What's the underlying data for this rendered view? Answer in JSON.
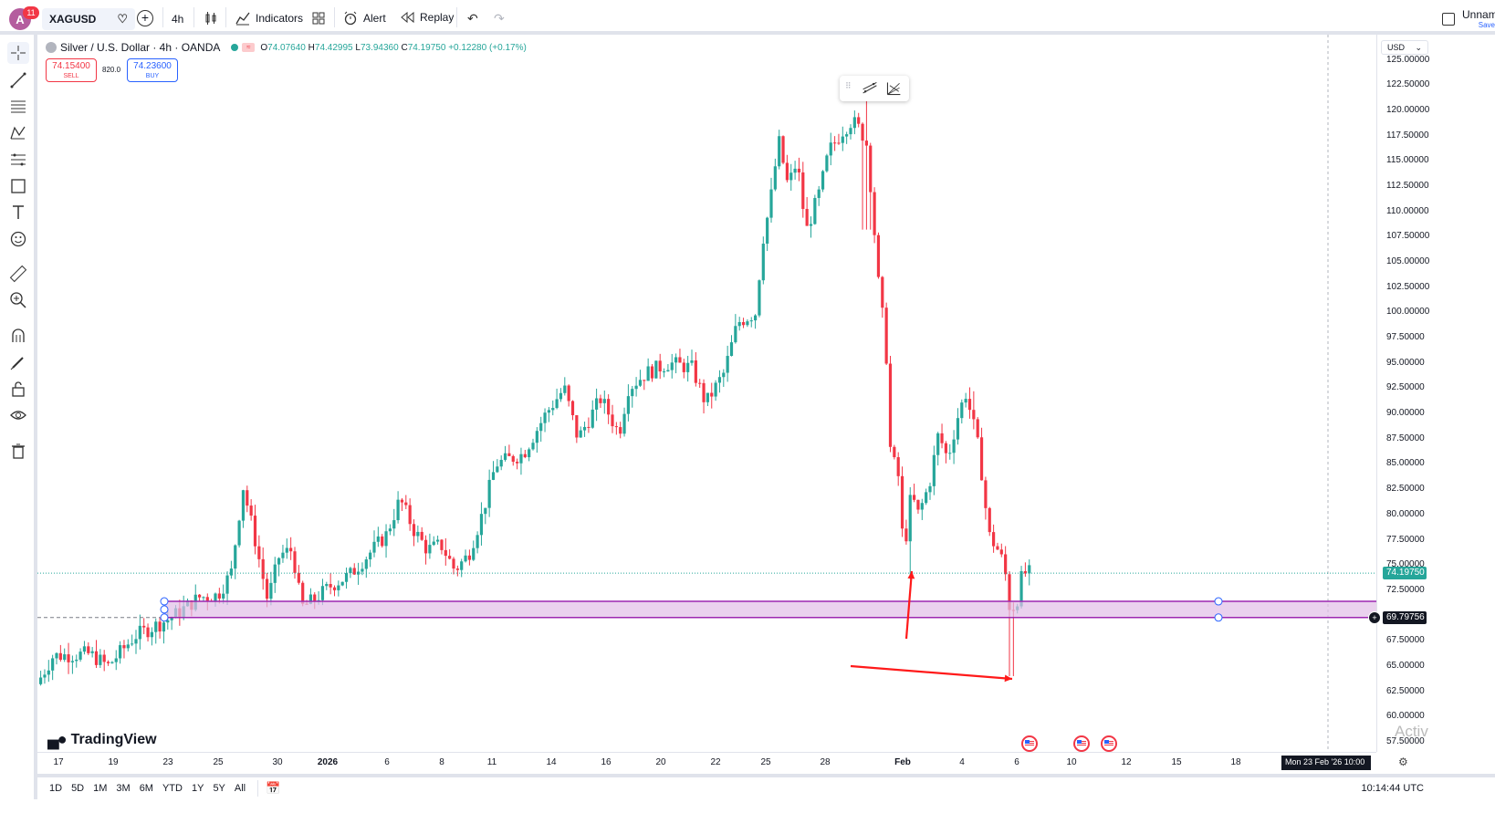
{
  "topbar": {
    "avatar_letter": "A",
    "avatar_badge": "11",
    "symbol": "XAGUSD",
    "interval": "4h",
    "indicators_label": "Indicators",
    "alert_label": "Alert",
    "replay_label": "Replay",
    "layout_name": "Unnam",
    "layout_saved": "Save"
  },
  "legend": {
    "title": "Silver / U.S. Dollar · 4h · OANDA",
    "open_label": "O",
    "open": "74.07640",
    "high_label": "H",
    "high": "74.42995",
    "low_label": "L",
    "low": "73.94360",
    "close_label": "C",
    "close": "74.19750",
    "change": "+0.12280 (+0.17%)"
  },
  "trade": {
    "sell_price": "74.15400",
    "sell_label": "SELL",
    "spread": "820.0",
    "buy_price": "74.23600",
    "buy_label": "BUY"
  },
  "price_scale": {
    "currency": "USD",
    "labels": [
      "125.00000",
      "122.50000",
      "120.00000",
      "117.50000",
      "115.00000",
      "112.50000",
      "110.00000",
      "107.50000",
      "105.00000",
      "102.50000",
      "100.00000",
      "97.50000",
      "95.00000",
      "92.50000",
      "90.00000",
      "87.50000",
      "85.00000",
      "82.50000",
      "80.00000",
      "77.50000",
      "75.00000",
      "72.50000",
      "67.50000",
      "65.00000",
      "62.50000",
      "60.00000",
      "57.50000"
    ],
    "last_price": "74.19750",
    "zone_price": "69.79756"
  },
  "time_axis": {
    "labels": [
      "17",
      "19",
      "23",
      "25",
      "30",
      "2026",
      "6",
      "8",
      "11",
      "14",
      "16",
      "20",
      "22",
      "25",
      "28",
      "Feb",
      "4",
      "6",
      "10",
      "12",
      "15",
      "18"
    ],
    "crosshair_label": "Mon 23 Feb '26   10:00"
  },
  "bottombar": {
    "ranges": [
      "1D",
      "5D",
      "1M",
      "3M",
      "6M",
      "YTD",
      "1Y",
      "5Y",
      "All"
    ],
    "clock": "10:14:44 UTC"
  },
  "watermark": "TradingView",
  "overlay_text": "Activ",
  "colors": {
    "up": "#26a69a",
    "down": "#f23645",
    "zone_fill": "#e1bee7",
    "zone_border": "#9c27b0",
    "arrow": "#ff1a1a",
    "accent": "#2962ff"
  },
  "chart_data": {
    "type": "candlestick",
    "symbol": "XAGUSD",
    "interval": "4h",
    "y_range": [
      56.5,
      127.5
    ],
    "zone": {
      "top": 71.4,
      "bottom": 69.79756
    },
    "current_price": 74.1975,
    "key_levels": {
      "peak_high": 121.6,
      "drop_low_1": 73.6,
      "rebound_high": 92.2,
      "final_low": 64.0
    },
    "x_labels": [
      "17",
      "19",
      "23",
      "25",
      "30",
      "2026",
      "6",
      "8",
      "11",
      "14",
      "16",
      "20",
      "22",
      "25",
      "28",
      "Feb",
      "4",
      "6",
      "10",
      "12",
      "15",
      "18"
    ]
  }
}
